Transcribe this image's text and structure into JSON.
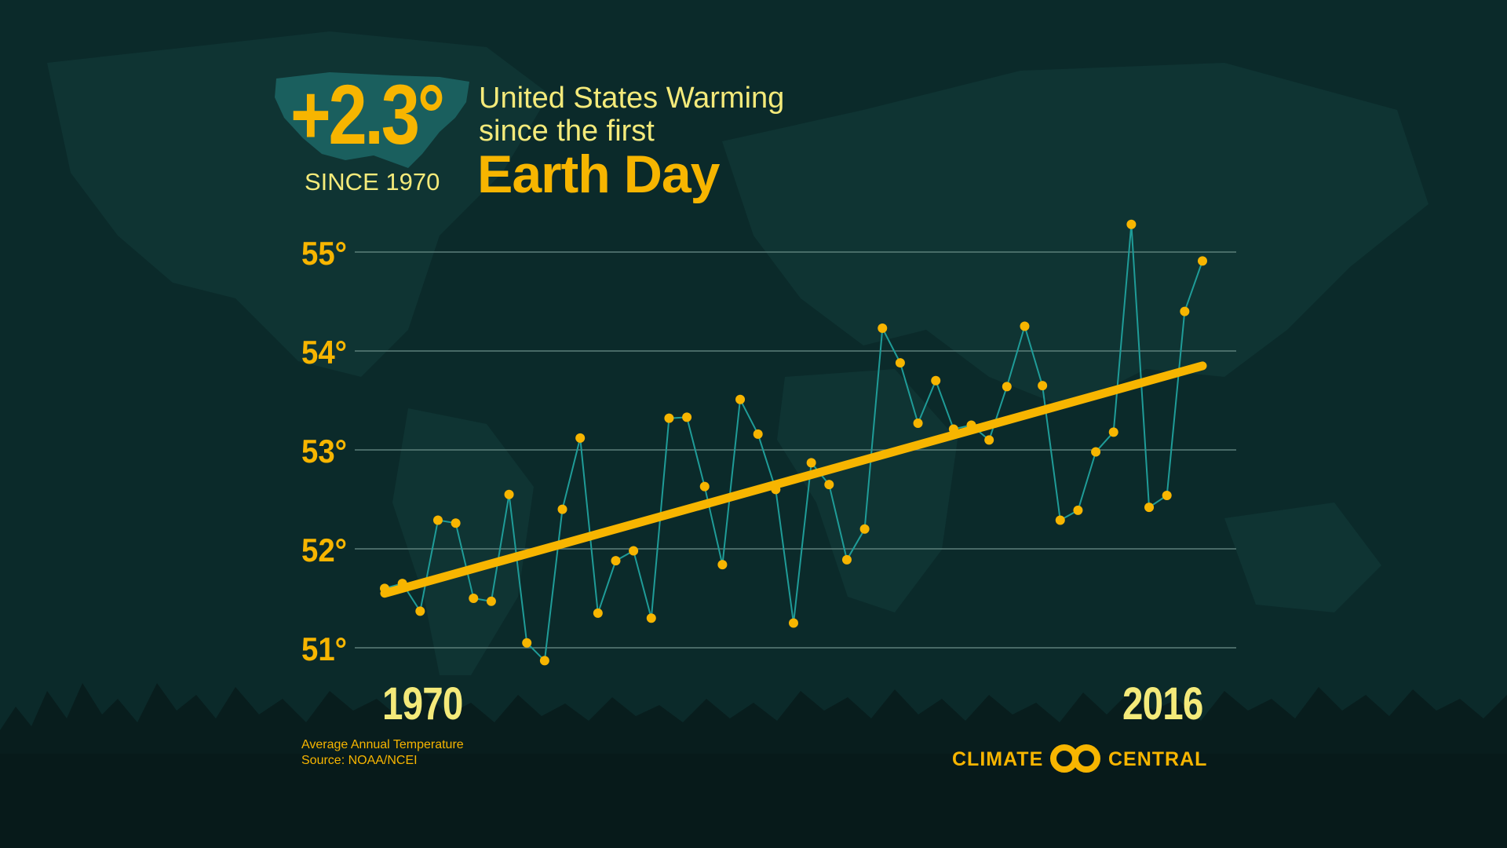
{
  "headline": {
    "value": "+2.3°",
    "since": "SINCE 1970",
    "title_line1": "United States Warming",
    "title_line2": "since the first",
    "title_line3": "Earth Day"
  },
  "footer": {
    "x_start_label": "1970",
    "x_end_label": "2016",
    "caption": "Average Annual Temperature",
    "source": "Source: NOAA/NCEI",
    "brand_left": "CLIMATE",
    "brand_right": "CENTRAL"
  },
  "colors": {
    "background": "#0b2a2a",
    "accent": "#f7b500",
    "highlight_text": "#f4ea7a",
    "series_line": "#1f9c98",
    "gridline": "#5c7e7b"
  },
  "chart_data": {
    "type": "line",
    "title": "United States Warming since the first Earth Day",
    "xlabel": "",
    "ylabel": "",
    "ylim": [
      50.5,
      55.3
    ],
    "yticks": [
      51,
      52,
      53,
      54,
      55
    ],
    "ytick_labels": [
      "51°",
      "52°",
      "53°",
      "54°",
      "55°"
    ],
    "grid": true,
    "x": [
      1970,
      1971,
      1972,
      1973,
      1974,
      1975,
      1976,
      1977,
      1978,
      1979,
      1980,
      1981,
      1982,
      1983,
      1984,
      1985,
      1986,
      1987,
      1988,
      1989,
      1990,
      1991,
      1992,
      1993,
      1994,
      1995,
      1996,
      1997,
      1998,
      1999,
      2000,
      2001,
      2002,
      2003,
      2004,
      2005,
      2006,
      2007,
      2008,
      2009,
      2010,
      2011,
      2012,
      2013,
      2014,
      2015,
      2016
    ],
    "series": [
      {
        "values": [
          51.6,
          51.65,
          51.37,
          52.29,
          52.26,
          51.5,
          51.47,
          52.55,
          51.05,
          50.87,
          52.4,
          53.12,
          51.35,
          51.88,
          51.98,
          51.3,
          53.32,
          53.33,
          52.63,
          51.84,
          53.51,
          53.16,
          52.6,
          51.25,
          52.87,
          52.65,
          51.89,
          52.2,
          54.23,
          53.88,
          53.27,
          53.7,
          53.21,
          53.25,
          53.1,
          53.64,
          54.25,
          53.65,
          52.29,
          52.39,
          52.98,
          53.18,
          55.28,
          52.42,
          52.54,
          54.4,
          54.91
        ]
      }
    ],
    "trend": {
      "x": [
        1970,
        2016
      ],
      "y": [
        51.55,
        53.85
      ]
    },
    "annotation": "+2.3° SINCE 1970"
  }
}
